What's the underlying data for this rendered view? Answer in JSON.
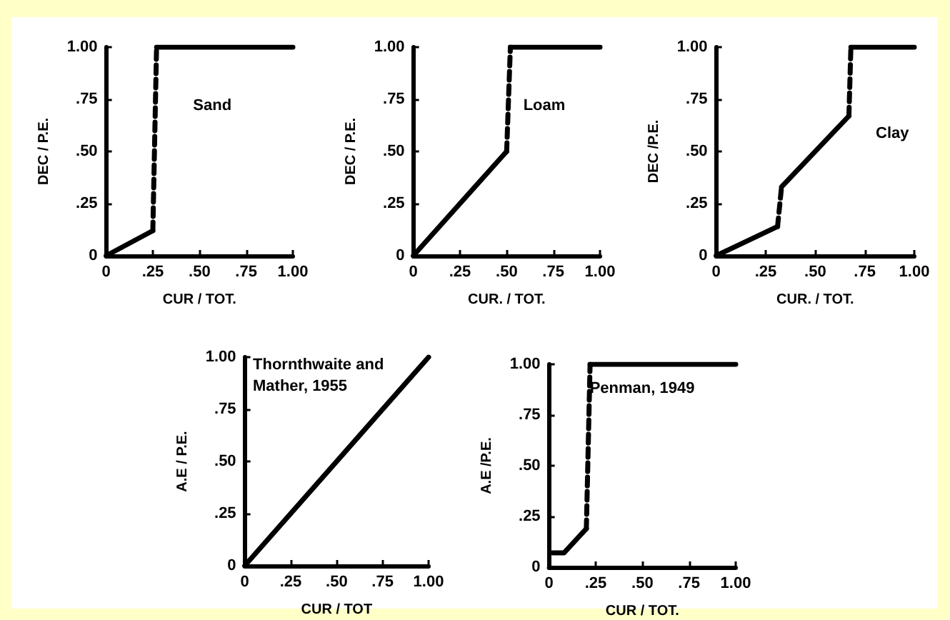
{
  "chart_data": [
    {
      "type": "line",
      "xlabel": "CUR / TOT.",
      "ylabel": "DEC / P.E.",
      "annotations": [
        "Sand"
      ],
      "marker": "none",
      "grid": false,
      "xlim": [
        0,
        1
      ],
      "ylim": [
        0,
        1
      ],
      "xticks": [
        {
          "value": 0,
          "label": "0"
        },
        {
          "value": 0.25,
          "label": ".25"
        },
        {
          "value": 0.5,
          "label": ".50"
        },
        {
          "value": 0.75,
          "label": ".75"
        },
        {
          "value": 1,
          "label": "1.00"
        }
      ],
      "yticks": [
        {
          "value": 0,
          "label": "0"
        },
        {
          "value": 0.25,
          "label": ".25"
        },
        {
          "value": 0.5,
          "label": ".50"
        },
        {
          "value": 0.75,
          "label": ".75"
        },
        {
          "value": 1,
          "label": "1.00"
        }
      ],
      "series": [
        {
          "color": "#000000",
          "line_style": "solid",
          "x": [
            0,
            0.25
          ],
          "values": [
            0,
            0.12
          ]
        },
        {
          "color": "#000000",
          "line_style": "dashed",
          "x": [
            0.25,
            0.27
          ],
          "values": [
            0.12,
            1
          ]
        },
        {
          "color": "#000000",
          "line_style": "solid",
          "x": [
            0.27,
            1
          ],
          "values": [
            1,
            1
          ]
        }
      ]
    },
    {
      "type": "line",
      "xlabel": "CUR. / TOT.",
      "ylabel": "DEC / P.E.",
      "annotations": [
        "Loam"
      ],
      "marker": "none",
      "grid": false,
      "xlim": [
        0,
        1
      ],
      "ylim": [
        0,
        1
      ],
      "xticks": [
        {
          "value": 0,
          "label": "0"
        },
        {
          "value": 0.25,
          "label": ".25"
        },
        {
          "value": 0.5,
          "label": ".50"
        },
        {
          "value": 0.75,
          "label": ".75"
        },
        {
          "value": 1,
          "label": "1.00"
        }
      ],
      "yticks": [
        {
          "value": 0,
          "label": "0"
        },
        {
          "value": 0.25,
          "label": ".25"
        },
        {
          "value": 0.5,
          "label": ".50"
        },
        {
          "value": 0.75,
          "label": ".75"
        },
        {
          "value": 1,
          "label": "1.00"
        }
      ],
      "series": [
        {
          "color": "#000000",
          "line_style": "solid",
          "x": [
            0,
            0.5
          ],
          "values": [
            0,
            0.5
          ]
        },
        {
          "color": "#000000",
          "line_style": "dashed",
          "x": [
            0.5,
            0.52
          ],
          "values": [
            0.5,
            1
          ]
        },
        {
          "color": "#000000",
          "line_style": "solid",
          "x": [
            0.52,
            1
          ],
          "values": [
            1,
            1
          ]
        }
      ]
    },
    {
      "type": "line",
      "xlabel": "CUR. / TOT.",
      "ylabel": "DEC /P.E.",
      "annotations": [
        "Clay"
      ],
      "marker": "none",
      "grid": false,
      "xlim": [
        0,
        1
      ],
      "ylim": [
        0,
        1
      ],
      "xticks": [
        {
          "value": 0,
          "label": "0"
        },
        {
          "value": 0.25,
          "label": ".25"
        },
        {
          "value": 0.5,
          "label": ".50"
        },
        {
          "value": 0.75,
          "label": ".75"
        },
        {
          "value": 1,
          "label": "1.00"
        }
      ],
      "yticks": [
        {
          "value": 0,
          "label": "0"
        },
        {
          "value": 0.25,
          "label": ".25"
        },
        {
          "value": 0.5,
          "label": ".50"
        },
        {
          "value": 0.75,
          "label": ".75"
        },
        {
          "value": 1,
          "label": "1.00"
        }
      ],
      "series": [
        {
          "color": "#000000",
          "line_style": "solid",
          "x": [
            0,
            0.31
          ],
          "values": [
            0,
            0.14
          ]
        },
        {
          "color": "#000000",
          "line_style": "dashed",
          "x": [
            0.31,
            0.33
          ],
          "values": [
            0.14,
            0.33
          ]
        },
        {
          "color": "#000000",
          "line_style": "solid",
          "x": [
            0.33,
            0.67
          ],
          "values": [
            0.33,
            0.67
          ]
        },
        {
          "color": "#000000",
          "line_style": "dashed",
          "x": [
            0.67,
            0.68
          ],
          "values": [
            0.67,
            1
          ]
        },
        {
          "color": "#000000",
          "line_style": "solid",
          "x": [
            0.68,
            1
          ],
          "values": [
            1,
            1
          ]
        }
      ]
    },
    {
      "type": "line",
      "xlabel": "CUR / TOT",
      "ylabel": "A.E / P.E.",
      "annotations": [
        "Thornthwaite and Mather, 1955"
      ],
      "marker": "none",
      "grid": false,
      "xlim": [
        0,
        1
      ],
      "ylim": [
        0,
        1
      ],
      "xticks": [
        {
          "value": 0,
          "label": "0"
        },
        {
          "value": 0.25,
          "label": ".25"
        },
        {
          "value": 0.5,
          "label": ".50"
        },
        {
          "value": 0.75,
          "label": ".75"
        },
        {
          "value": 1,
          "label": "1.00"
        }
      ],
      "yticks": [
        {
          "value": 0,
          "label": "0"
        },
        {
          "value": 0.25,
          "label": ".25"
        },
        {
          "value": 0.5,
          "label": ".50"
        },
        {
          "value": 0.75,
          "label": ".75"
        },
        {
          "value": 1,
          "label": "1.00"
        }
      ],
      "series": [
        {
          "color": "#000000",
          "line_style": "solid",
          "x": [
            0,
            1
          ],
          "values": [
            0,
            1
          ]
        }
      ]
    },
    {
      "type": "line",
      "xlabel": "CUR / TOT.",
      "ylabel": "A.E /P.E.",
      "annotations": [
        "Penman, 1949"
      ],
      "marker": "none",
      "grid": false,
      "xlim": [
        0,
        1
      ],
      "ylim": [
        0,
        1
      ],
      "xticks": [
        {
          "value": 0,
          "label": "0"
        },
        {
          "value": 0.25,
          "label": ".25"
        },
        {
          "value": 0.5,
          "label": ".50"
        },
        {
          "value": 0.75,
          "label": ".75"
        },
        {
          "value": 1,
          "label": "1.00"
        }
      ],
      "yticks": [
        {
          "value": 0,
          "label": "0"
        },
        {
          "value": 0.25,
          "label": ".25"
        },
        {
          "value": 0.5,
          "label": ".50"
        },
        {
          "value": 0.75,
          "label": ".75"
        },
        {
          "value": 1,
          "label": "1.00"
        }
      ],
      "series": [
        {
          "color": "#000000",
          "line_style": "solid",
          "x": [
            0.02,
            0.08,
            0.2
          ],
          "values": [
            0.07,
            0.07,
            0.19
          ]
        },
        {
          "color": "#000000",
          "line_style": "dashed",
          "x": [
            0.2,
            0.22
          ],
          "values": [
            0.19,
            1
          ]
        },
        {
          "color": "#000000",
          "line_style": "solid",
          "x": [
            0.22,
            1
          ],
          "values": [
            1,
            1
          ]
        }
      ]
    }
  ]
}
